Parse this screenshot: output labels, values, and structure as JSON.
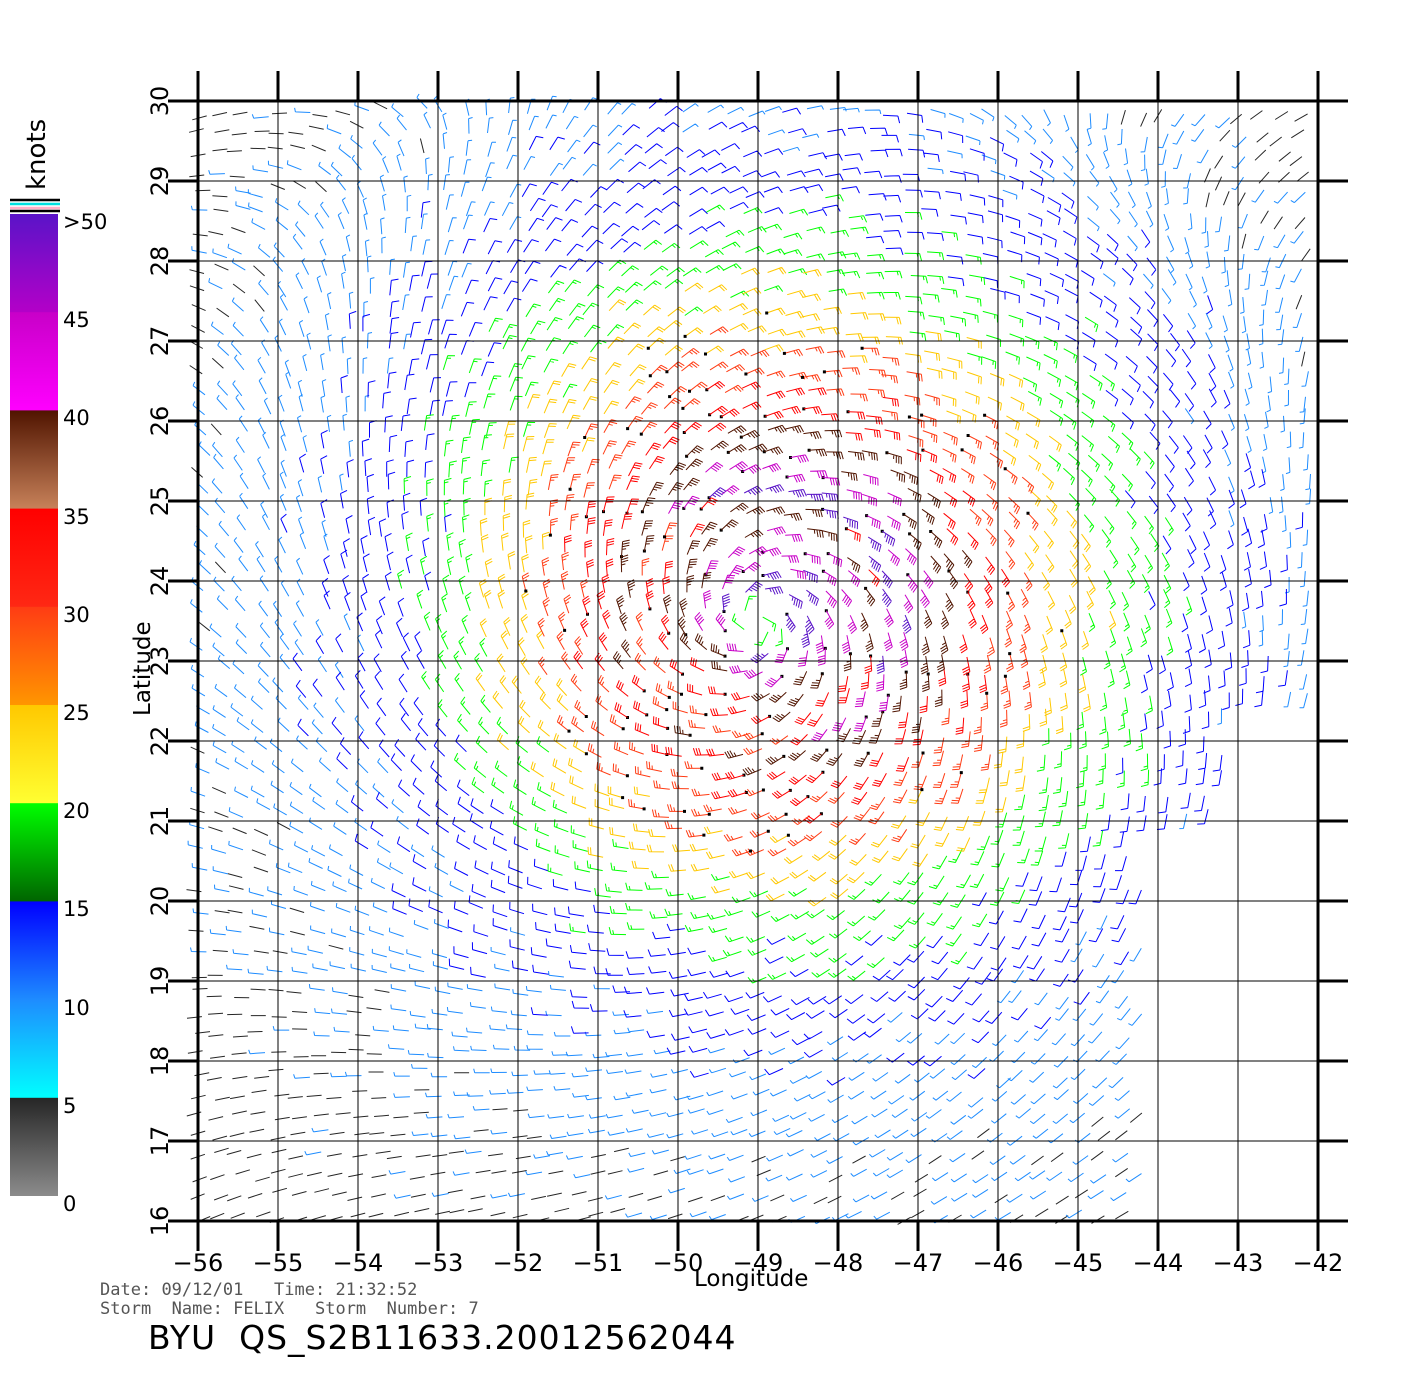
{
  "map": {
    "x_axis_label": "Longitude",
    "y_axis_label": "Latitude",
    "lon_ticks": [
      -56,
      -55,
      -54,
      -53,
      -52,
      -51,
      -50,
      -49,
      -48,
      -47,
      -46,
      -45,
      -44,
      -43,
      -42
    ],
    "lat_ticks": [
      16,
      17,
      18,
      19,
      20,
      21,
      22,
      23,
      24,
      25,
      26,
      27,
      28,
      29,
      30
    ],
    "lon_range": [
      -56,
      -42
    ],
    "lat_range": [
      16,
      30
    ],
    "storm_center": {
      "lon": -49.0,
      "lat": 23.5
    }
  },
  "legend": {
    "unit": "knots",
    "ticks": [
      ">50",
      "45",
      "40",
      "35",
      "30",
      "25",
      "20",
      "15",
      "10",
      "5",
      "0"
    ],
    "bands": [
      {
        "from": 0,
        "to": 5,
        "top": "#262626",
        "bottom": "#8c8c8c"
      },
      {
        "from": 5,
        "to": 10,
        "top": "#1e8cff",
        "bottom": "#00ffff"
      },
      {
        "from": 10,
        "to": 15,
        "top": "#0000ff",
        "bottom": "#1e8cff"
      },
      {
        "from": 15,
        "to": 20,
        "top": "#00ff00",
        "bottom": "#006400"
      },
      {
        "from": 20,
        "to": 25,
        "top": "#ffc800",
        "bottom": "#ffff32"
      },
      {
        "from": 25,
        "to": 30,
        "top": "#ff3c14",
        "bottom": "#ff9600"
      },
      {
        "from": 30,
        "to": 35,
        "top": "#ff0000",
        "bottom": "#ff2814"
      },
      {
        "from": 35,
        "to": 40,
        "top": "#501400",
        "bottom": "#c8825a"
      },
      {
        "from": 40,
        "to": 45,
        "top": "#c800c8",
        "bottom": "#ff00ff"
      },
      {
        "from": 45,
        "to": 50,
        "top": "#5a14c8",
        "bottom": "#b400c8"
      }
    ]
  },
  "metadata": {
    "date_label": "Date:",
    "date": "09/12/01",
    "time_label": "Time:",
    "time": "21:32:52",
    "storm_name_label": "Storm  Name:",
    "storm_name": "FELIX",
    "storm_number_label": "Storm  Number:",
    "storm_number": "7",
    "product": "BYU  QS_S2B11633.20012562044"
  }
}
